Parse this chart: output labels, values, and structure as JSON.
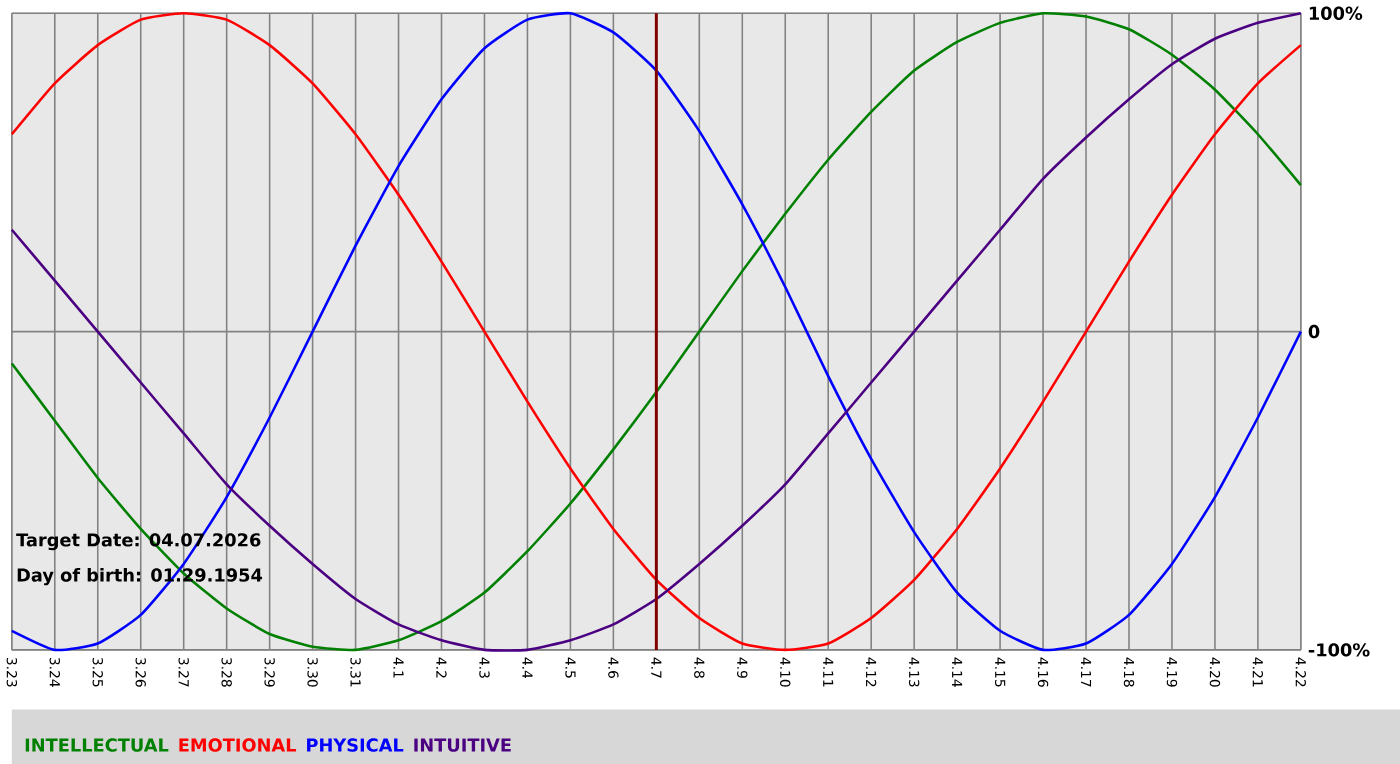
{
  "chart_data": {
    "type": "line",
    "categories": [
      "3.23",
      "3.24",
      "3.25",
      "3.26",
      "3.27",
      "3.28",
      "3.29",
      "3.30",
      "3.31",
      "4.1",
      "4.2",
      "4.3",
      "4.4",
      "4.5",
      "4.6",
      "4.7",
      "4.8",
      "4.9",
      "4.10",
      "4.11",
      "4.12",
      "4.13",
      "4.14",
      "4.15",
      "4.16",
      "4.17",
      "4.18",
      "4.19",
      "4.20",
      "4.21",
      "4.22"
    ],
    "series": [
      {
        "name": "INTELLECTUAL",
        "color": "#008000",
        "values": [
          -10,
          -28,
          -46,
          -62,
          -76,
          -87,
          -95,
          -99,
          -100,
          -97,
          -91,
          -82,
          -69,
          -54,
          -37,
          -19,
          0,
          19,
          37,
          54,
          69,
          82,
          91,
          97,
          100,
          99,
          95,
          87,
          76,
          62,
          46
        ]
      },
      {
        "name": "EMOTIONAL",
        "color": "#ff0000",
        "values": [
          62,
          78,
          90,
          98,
          100,
          98,
          90,
          78,
          62,
          43,
          22,
          0,
          -22,
          -43,
          -62,
          -78,
          -90,
          -98,
          -100,
          -98,
          -90,
          -78,
          -62,
          -43,
          -22,
          0,
          22,
          43,
          62,
          78,
          90
        ]
      },
      {
        "name": "PHYSICAL",
        "color": "#0000ff",
        "values": [
          -94,
          -100,
          -98,
          -89,
          -73,
          -52,
          -27,
          0,
          27,
          52,
          73,
          89,
          98,
          100,
          94,
          82,
          63,
          40,
          14,
          -14,
          -40,
          -63,
          -82,
          -94,
          -100,
          -98,
          -89,
          -73,
          -52,
          -27,
          0
        ]
      },
      {
        "name": "INTUITIVE",
        "color": "#4b0082",
        "values": [
          32,
          16,
          0,
          -16,
          -32,
          -48,
          -61,
          -73,
          -84,
          -92,
          -97,
          -100,
          -100,
          -97,
          -92,
          -84,
          -73,
          -61,
          -48,
          -32,
          -16,
          0,
          16,
          32,
          48,
          61,
          73,
          84,
          92,
          97,
          100
        ]
      }
    ],
    "ylim": [
      -100,
      100
    ],
    "yticks": [
      {
        "value": -100,
        "label": "-100%"
      },
      0,
      {
        "value": 100,
        "label": "100%"
      }
    ],
    "ref_lines": [
      {
        "axis": "x",
        "value": "4.7",
        "color": "#800000"
      }
    ],
    "annotations": [
      "Target Date: 04.07.2026",
      "Day of birth: 01.29.1954"
    ],
    "grid": true,
    "legend": "bottom left",
    "marker": "none",
    "line_style": "solid"
  }
}
